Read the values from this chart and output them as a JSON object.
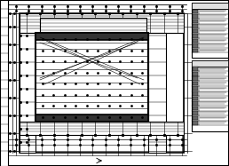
{
  "bg_color": "#ffffff",
  "line_color": "#000000",
  "figsize": [
    2.58,
    1.87
  ],
  "dpi": 100
}
